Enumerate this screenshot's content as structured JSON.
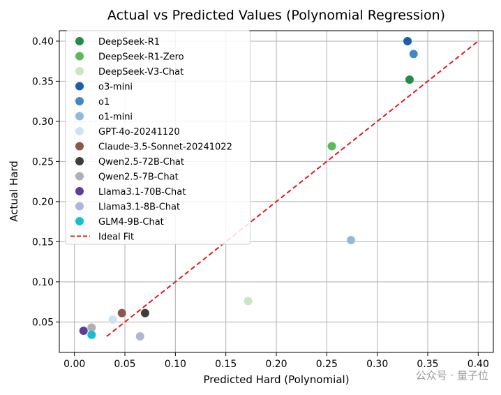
{
  "chart_data": {
    "type": "scatter",
    "title": "Actual vs Predicted Values (Polynomial Regression)",
    "xlabel": "Predicted Hard (Polynomial)",
    "ylabel": "Actual Hard",
    "xlim": [
      -0.015,
      0.415
    ],
    "ylim": [
      0.012,
      0.413
    ],
    "xticks": [
      0.0,
      0.05,
      0.1,
      0.15,
      0.2,
      0.25,
      0.3,
      0.35,
      0.4
    ],
    "yticks": [
      0.05,
      0.1,
      0.15,
      0.2,
      0.25,
      0.3,
      0.35,
      0.4
    ],
    "grid": true,
    "legend_position": "upper-left",
    "series": [
      {
        "name": "DeepSeek-R1",
        "color": "#238b45",
        "points": [
          {
            "x": 0.332,
            "y": 0.352
          }
        ]
      },
      {
        "name": "DeepSeek-R1-Zero",
        "color": "#5cb85c",
        "points": [
          {
            "x": 0.255,
            "y": 0.269
          }
        ]
      },
      {
        "name": "DeepSeek-V3-Chat",
        "color": "#c7e9c0",
        "points": [
          {
            "x": 0.172,
            "y": 0.076
          }
        ]
      },
      {
        "name": "o3-mini",
        "color": "#1d5fa6",
        "points": [
          {
            "x": 0.33,
            "y": 0.4
          }
        ]
      },
      {
        "name": "o1",
        "color": "#3f88c5",
        "points": [
          {
            "x": 0.336,
            "y": 0.384
          }
        ]
      },
      {
        "name": "o1-mini",
        "color": "#8fbbdb",
        "points": [
          {
            "x": 0.274,
            "y": 0.152
          }
        ]
      },
      {
        "name": "GPT-4o-20241120",
        "color": "#cfe1f2",
        "points": [
          {
            "x": 0.038,
            "y": 0.053
          }
        ]
      },
      {
        "name": "Claude-3.5-Sonnet-20241022",
        "color": "#8c564b",
        "points": [
          {
            "x": 0.047,
            "y": 0.061
          }
        ]
      },
      {
        "name": "Qwen2.5-72B-Chat",
        "color": "#3d3d3d",
        "points": [
          {
            "x": 0.07,
            "y": 0.061
          }
        ]
      },
      {
        "name": "Qwen2.5-7B-Chat",
        "color": "#b0b0b0",
        "points": [
          {
            "x": 0.017,
            "y": 0.043
          }
        ]
      },
      {
        "name": "Llama3.1-70B-Chat",
        "color": "#5e3c99",
        "points": [
          {
            "x": 0.009,
            "y": 0.039
          }
        ]
      },
      {
        "name": "Llama3.1-8B-Chat",
        "color": "#b2b5d9",
        "points": [
          {
            "x": 0.065,
            "y": 0.032
          }
        ]
      },
      {
        "name": "GLM4-9B-Chat",
        "color": "#17becf",
        "points": [
          {
            "x": 0.017,
            "y": 0.034
          }
        ]
      }
    ],
    "ideal_fit": {
      "name": "Ideal Fit",
      "color": "#e41a1c",
      "style": "dashed",
      "x": [
        0.032,
        0.4
      ],
      "y": [
        0.032,
        0.4
      ]
    }
  },
  "watermark": "公众号 · 量子位"
}
